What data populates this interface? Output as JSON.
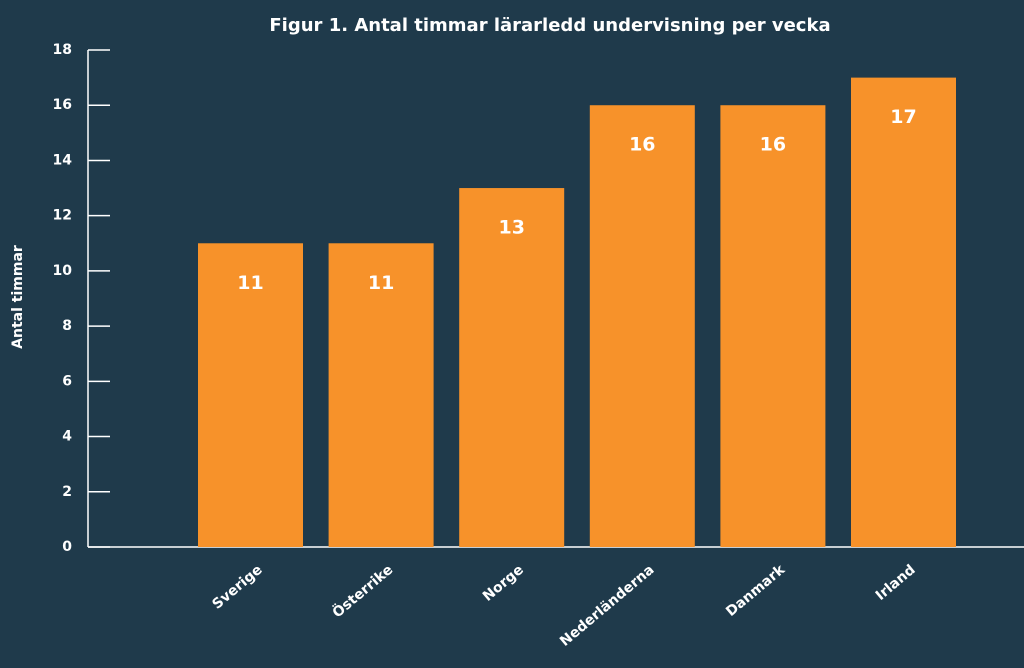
{
  "chart_data": {
    "type": "bar",
    "title": "Figur 1. Antal timmar lärarledd undervisning per vecka",
    "y_label": "Antal timmar",
    "categories": [
      "Sverige",
      "Österrike",
      "Norge",
      "Nederländerna",
      "Danmark",
      "Irland"
    ],
    "values": [
      11,
      11,
      13,
      16,
      16,
      17
    ],
    "color": "#f7922a",
    "ylim": [
      0,
      18
    ],
    "yticks": [
      0,
      2,
      4,
      6,
      8,
      10,
      12,
      14,
      16,
      18
    ],
    "grid": false,
    "data_labels": true
  }
}
